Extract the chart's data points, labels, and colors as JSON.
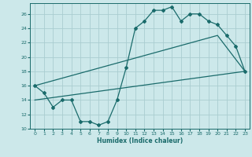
{
  "xlabel": "Humidex (Indice chaleur)",
  "bg_color": "#cce8ea",
  "grid_color": "#aacdd0",
  "line_color": "#1a6b6b",
  "xlim": [
    -0.5,
    23.5
  ],
  "ylim": [
    10,
    27.5
  ],
  "xticks": [
    0,
    1,
    2,
    3,
    4,
    5,
    6,
    7,
    8,
    9,
    10,
    11,
    12,
    13,
    14,
    15,
    16,
    17,
    18,
    19,
    20,
    21,
    22,
    23
  ],
  "yticks": [
    10,
    12,
    14,
    16,
    18,
    20,
    22,
    24,
    26
  ],
  "line1_x": [
    0,
    1,
    2,
    3,
    4,
    5,
    6,
    7,
    8,
    9,
    10,
    11,
    12,
    13,
    14,
    15,
    16,
    17,
    18,
    19,
    20,
    21,
    22,
    23
  ],
  "line1_y": [
    16,
    15,
    13,
    14,
    14,
    11,
    11,
    10.5,
    11,
    14,
    18.5,
    24,
    25,
    26.5,
    26.5,
    27,
    25,
    26,
    26,
    25,
    24.5,
    23,
    21.5,
    18
  ],
  "line2_x": [
    0,
    23
  ],
  "line2_y": [
    14,
    18
  ],
  "line3_x": [
    0,
    20,
    23
  ],
  "line3_y": [
    16,
    23,
    18
  ]
}
